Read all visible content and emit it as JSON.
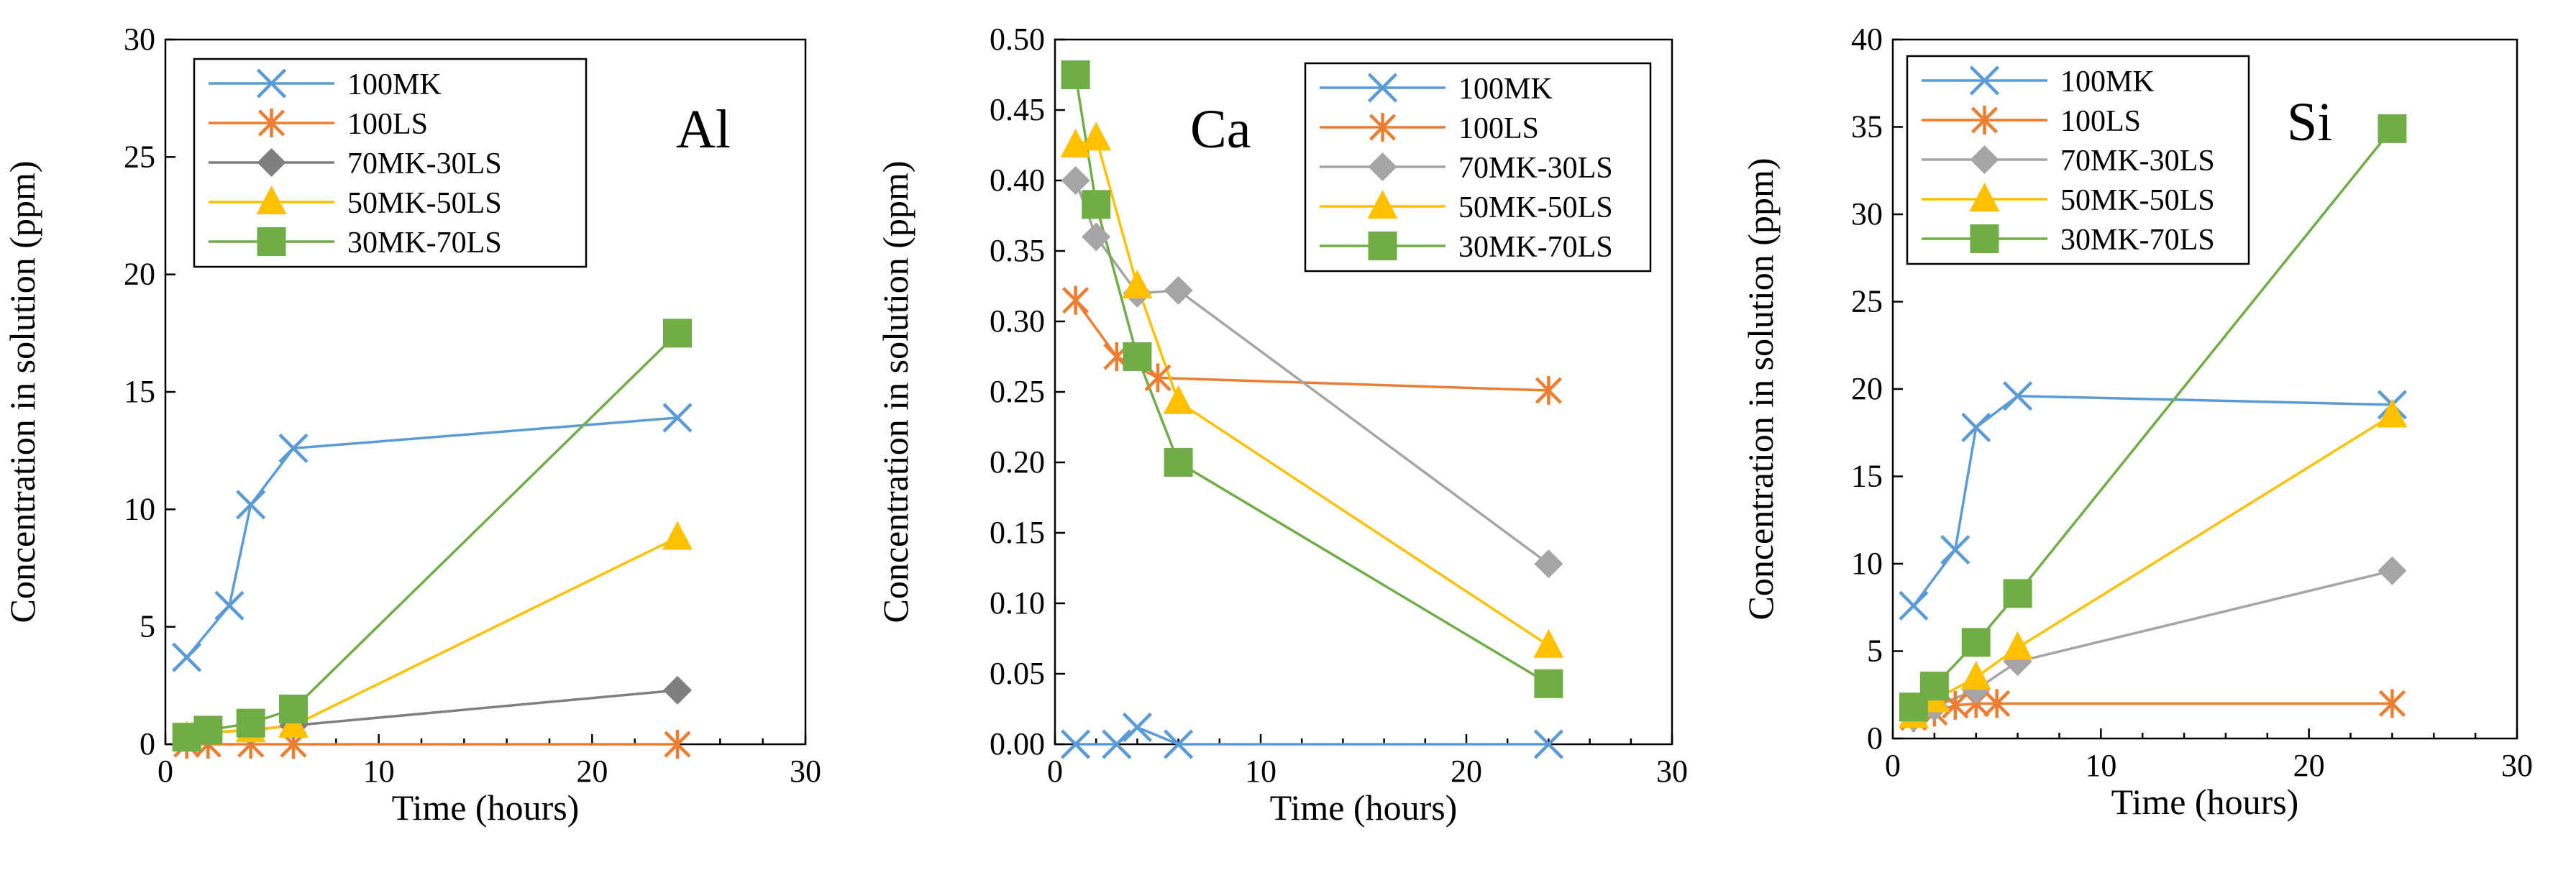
{
  "chart_data": [
    {
      "type": "line",
      "annotation": "Al",
      "xlabel": "Time (hours)",
      "ylabel": "Concentration in solution (ppm)",
      "xlim": [
        0,
        30
      ],
      "ylim": [
        0,
        30
      ],
      "xticks": [
        "0",
        "10",
        "20",
        "30"
      ],
      "yticks": [
        "0",
        "5",
        "10",
        "15",
        "20",
        "25",
        "30"
      ],
      "grid": false,
      "legend_position": "top-left",
      "series": [
        {
          "name": "100MK",
          "color": "#5B9BD5",
          "marker": "x",
          "points": [
            [
              1,
              3.7
            ],
            [
              3,
              5.9
            ],
            [
              4,
              10.2
            ],
            [
              6,
              12.6
            ],
            [
              24,
              13.9
            ]
          ]
        },
        {
          "name": "100LS",
          "color": "#ED7D31",
          "marker": "star",
          "points": [
            [
              1,
              0.0
            ],
            [
              2,
              0.0
            ],
            [
              4,
              0.0
            ],
            [
              6,
              0.0
            ],
            [
              24,
              0.0
            ]
          ]
        },
        {
          "name": "70MK-30LS",
          "color": "#7F7F7F",
          "marker": "diamond",
          "points": [
            [
              1,
              0.3
            ],
            [
              2,
              0.5
            ],
            [
              4,
              0.6
            ],
            [
              6,
              0.8
            ],
            [
              24,
              2.3
            ]
          ]
        },
        {
          "name": "50MK-50LS",
          "color": "#FFC000",
          "marker": "triangle",
          "points": [
            [
              1,
              0.3
            ],
            [
              2,
              0.5
            ],
            [
              4,
              0.6
            ],
            [
              6,
              0.8
            ],
            [
              24,
              8.8
            ]
          ]
        },
        {
          "name": "30MK-70LS",
          "color": "#70AD47",
          "marker": "square",
          "points": [
            [
              1,
              0.3
            ],
            [
              2,
              0.6
            ],
            [
              4,
              0.9
            ],
            [
              6,
              1.5
            ],
            [
              24,
              17.5
            ]
          ]
        }
      ]
    },
    {
      "type": "line",
      "annotation": "Ca",
      "xlabel": "Time (hours)",
      "ylabel": "Concentration in solution (ppm)",
      "xlim": [
        0,
        30
      ],
      "ylim": [
        0,
        0.5
      ],
      "xticks": [
        "0",
        "10",
        "20",
        "30"
      ],
      "yticks": [
        "0.00",
        "0.05",
        "0.10",
        "0.15",
        "0.20",
        "0.25",
        "0.30",
        "0.35",
        "0.40",
        "0.45",
        "0.50"
      ],
      "grid": false,
      "legend_position": "top-right",
      "series": [
        {
          "name": "100MK",
          "color": "#5B9BD5",
          "marker": "x",
          "points": [
            [
              1,
              0.0
            ],
            [
              3,
              0.0
            ],
            [
              4,
              0.012
            ],
            [
              6,
              0.0
            ],
            [
              24,
              0.0
            ]
          ]
        },
        {
          "name": "100LS",
          "color": "#ED7D31",
          "marker": "star",
          "points": [
            [
              1,
              0.315
            ],
            [
              3,
              0.275
            ],
            [
              5,
              0.26
            ],
            [
              24,
              0.251
            ]
          ]
        },
        {
          "name": "70MK-30LS",
          "color": "#A5A5A5",
          "marker": "diamond",
          "points": [
            [
              1,
              0.4
            ],
            [
              2,
              0.36
            ],
            [
              4,
              0.32
            ],
            [
              6,
              0.322
            ],
            [
              24,
              0.128
            ]
          ]
        },
        {
          "name": "50MK-50LS",
          "color": "#FFC000",
          "marker": "triangle",
          "points": [
            [
              1,
              0.425
            ],
            [
              2,
              0.43
            ],
            [
              4,
              0.325
            ],
            [
              6,
              0.243
            ],
            [
              24,
              0.07
            ]
          ]
        },
        {
          "name": "30MK-70LS",
          "color": "#70AD47",
          "marker": "square",
          "points": [
            [
              1,
              0.475
            ],
            [
              2,
              0.383
            ],
            [
              4,
              0.275
            ],
            [
              6,
              0.2
            ],
            [
              24,
              0.043
            ]
          ]
        }
      ]
    },
    {
      "type": "line",
      "annotation": "Si",
      "xlabel": "Time (hours)",
      "ylabel": "Concentration in solution (ppm)",
      "xlim": [
        0,
        30
      ],
      "ylim": [
        0,
        40
      ],
      "xticks": [
        "0",
        "10",
        "20",
        "30"
      ],
      "yticks": [
        "0",
        "5",
        "10",
        "15",
        "20",
        "25",
        "30",
        "35",
        "40"
      ],
      "grid": false,
      "legend_position": "top-left",
      "series": [
        {
          "name": "100MK",
          "color": "#5B9BD5",
          "marker": "x",
          "points": [
            [
              1,
              7.6
            ],
            [
              3,
              10.8
            ],
            [
              4,
              17.8
            ],
            [
              6,
              19.6
            ],
            [
              24,
              19.1
            ]
          ]
        },
        {
          "name": "100LS",
          "color": "#ED7D31",
          "marker": "star",
          "points": [
            [
              1,
              1.2
            ],
            [
              2,
              1.5
            ],
            [
              3,
              1.9
            ],
            [
              4,
              2.0
            ],
            [
              5,
              2.0
            ],
            [
              24,
              2.0
            ]
          ]
        },
        {
          "name": "70MK-30LS",
          "color": "#A5A5A5",
          "marker": "diamond",
          "points": [
            [
              1,
              1.2
            ],
            [
              2,
              1.8
            ],
            [
              4,
              2.8
            ],
            [
              6,
              4.4
            ],
            [
              24,
              9.6
            ]
          ]
        },
        {
          "name": "50MK-50LS",
          "color": "#FFC000",
          "marker": "triangle",
          "points": [
            [
              1,
              1.3
            ],
            [
              2,
              2.2
            ],
            [
              4,
              3.5
            ],
            [
              6,
              5.2
            ],
            [
              24,
              18.5
            ]
          ]
        },
        {
          "name": "30MK-70LS",
          "color": "#70AD47",
          "marker": "square",
          "points": [
            [
              1,
              1.8
            ],
            [
              2,
              3.0
            ],
            [
              4,
              5.5
            ],
            [
              6,
              8.3
            ],
            [
              24,
              34.9
            ]
          ]
        }
      ]
    }
  ]
}
